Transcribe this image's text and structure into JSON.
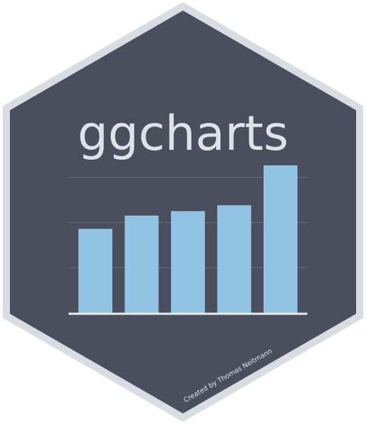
{
  "logo": {
    "title": "ggcharts",
    "credit": "Created by Thomas Neitmann"
  },
  "colors": {
    "background": "#ffffff",
    "hex_border": "#d7dde3",
    "hex_fill": "#4a4f5e",
    "bar": "#93c3e3",
    "gridline": "#5c6272",
    "axis": "#e9eef2",
    "title": "#dfe3e8",
    "credit": "#dfe3e8"
  },
  "chart_data": {
    "type": "bar",
    "values": [
      0.57,
      0.66,
      0.69,
      0.73,
      1.0
    ],
    "ylim": [
      0,
      1
    ],
    "grid": true
  }
}
